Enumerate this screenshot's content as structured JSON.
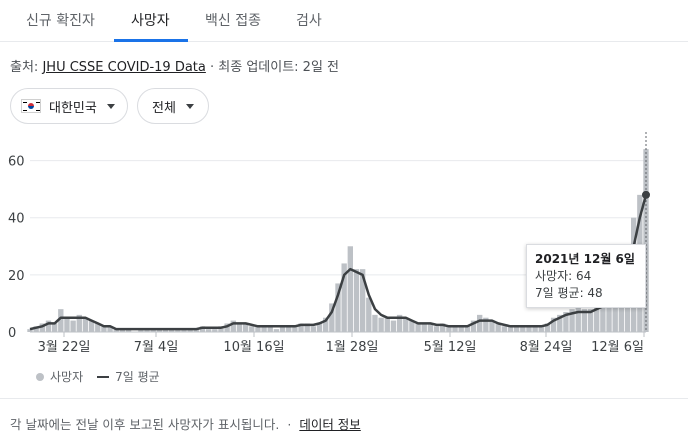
{
  "tabs": [
    {
      "label": "신규 확진자"
    },
    {
      "label": "사망자"
    },
    {
      "label": "백신 접종"
    },
    {
      "label": "검사"
    }
  ],
  "source": {
    "prefix": "출처:",
    "link": "JHU CSSE COVID-19 Data",
    "updated": " · 최종 업데이트: 2일 전"
  },
  "filters": {
    "region": "대한민국",
    "scope": "전체"
  },
  "tooltip": {
    "date": "2021년 12월 6일",
    "deaths": "사망자: 64",
    "avg": "7일 평균: 48"
  },
  "legend": {
    "deaths": "사망자",
    "avg": "7일 평균"
  },
  "footer": {
    "note": "각 날짜에는 전날 이후 보고된 사망자가 표시됩니다.",
    "sep": "·",
    "link": "데이터 정보"
  },
  "colors": {
    "bars": "#bdc1c6",
    "avg_line": "#3c4043",
    "active_tab": "#1a73e8"
  },
  "chart_data": {
    "type": "bar",
    "title": "",
    "xlabel": "",
    "ylabel": "",
    "ylim": [
      0,
      70
    ],
    "y_ticks": [
      0,
      20,
      40,
      60
    ],
    "x_ticks": [
      "3월 22일",
      "7월 4일",
      "10월 16일",
      "1월 28일",
      "5월 12일",
      "8월 24일",
      "12월 6일"
    ],
    "grid": true,
    "legend_position": "bottom-left",
    "series": [
      {
        "name": "사망자",
        "kind": "bar",
        "values": [
          1,
          2,
          3,
          4,
          3,
          8,
          5,
          4,
          6,
          5,
          4,
          3,
          2,
          2,
          1,
          1,
          1,
          0,
          1,
          1,
          1,
          1,
          1,
          1,
          1,
          1,
          1,
          1,
          2,
          1,
          1,
          2,
          3,
          4,
          3,
          3,
          2,
          2,
          2,
          2,
          1,
          2,
          2,
          2,
          3,
          3,
          2,
          3,
          5,
          10,
          17,
          24,
          30,
          22,
          22,
          12,
          6,
          5,
          5,
          4,
          6,
          5,
          4,
          3,
          3,
          3,
          2,
          3,
          2,
          2,
          2,
          2,
          4,
          6,
          5,
          4,
          3,
          2,
          2,
          2,
          2,
          2,
          2,
          2,
          3,
          5,
          6,
          7,
          8,
          10,
          8,
          8,
          9,
          10,
          12,
          14,
          18,
          25,
          40,
          48,
          64
        ]
      },
      {
        "name": "7일 평균",
        "kind": "line",
        "values": [
          1,
          1.5,
          2,
          3,
          3,
          5,
          5,
          5,
          5,
          5,
          4,
          3,
          2,
          2,
          1,
          1,
          1,
          1,
          1,
          1,
          1,
          1,
          1,
          1,
          1,
          1,
          1,
          1,
          1.5,
          1.5,
          1.5,
          1.5,
          2,
          3,
          3,
          3,
          2.5,
          2,
          2,
          2,
          2,
          2,
          2,
          2,
          2.5,
          2.5,
          2.5,
          3,
          4,
          7,
          13,
          20,
          22,
          21,
          20,
          13,
          8,
          6,
          5,
          5,
          5,
          5,
          4,
          3,
          3,
          3,
          2.5,
          2.5,
          2,
          2,
          2,
          2,
          3,
          4,
          4,
          4,
          3,
          2.5,
          2,
          2,
          2,
          2,
          2,
          2,
          2.5,
          4,
          5,
          6,
          6.5,
          7,
          7,
          7,
          8,
          9,
          10,
          12,
          15,
          20,
          30,
          40,
          48
        ]
      }
    ]
  }
}
